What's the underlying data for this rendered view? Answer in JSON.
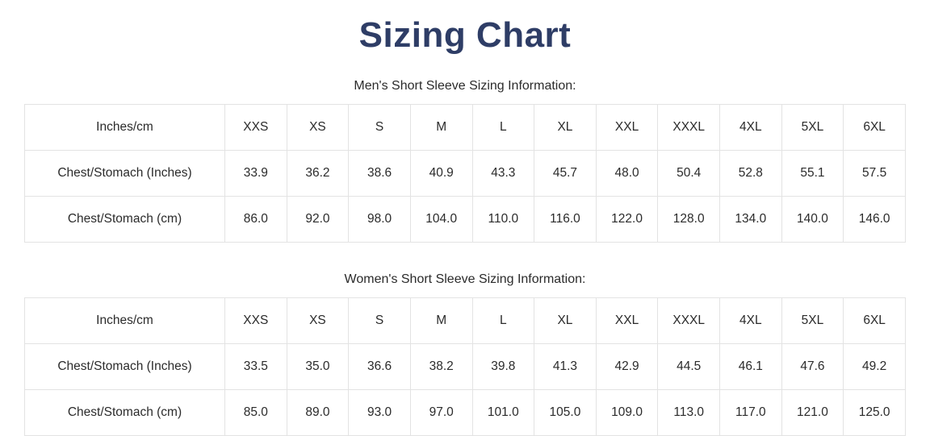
{
  "page": {
    "title": "Sizing Chart"
  },
  "colors": {
    "title_navy": "#2e3d66",
    "body_text": "#2b2b2b",
    "table_border": "#e3e3e3",
    "background": "#ffffff"
  },
  "tables": [
    {
      "caption": "Men's Short Sleeve Sizing Information:",
      "header": [
        "Inches/cm",
        "XXS",
        "XS",
        "S",
        "M",
        "L",
        "XL",
        "XXL",
        "XXXL",
        "4XL",
        "5XL",
        "6XL"
      ],
      "rows": [
        {
          "label": "Chest/Stomach (Inches)",
          "values": [
            "33.9",
            "36.2",
            "38.6",
            "40.9",
            "43.3",
            "45.7",
            "48.0",
            "50.4",
            "52.8",
            "55.1",
            "57.5"
          ]
        },
        {
          "label": "Chest/Stomach (cm)",
          "values": [
            "86.0",
            "92.0",
            "98.0",
            "104.0",
            "110.0",
            "116.0",
            "122.0",
            "128.0",
            "134.0",
            "140.0",
            "146.0"
          ]
        }
      ]
    },
    {
      "caption": "Women's Short Sleeve Sizing Information:",
      "header": [
        "Inches/cm",
        "XXS",
        "XS",
        "S",
        "M",
        "L",
        "XL",
        "XXL",
        "XXXL",
        "4XL",
        "5XL",
        "6XL"
      ],
      "rows": [
        {
          "label": "Chest/Stomach (Inches)",
          "values": [
            "33.5",
            "35.0",
            "36.6",
            "38.2",
            "39.8",
            "41.3",
            "42.9",
            "44.5",
            "46.1",
            "47.6",
            "49.2"
          ]
        },
        {
          "label": "Chest/Stomach (cm)",
          "values": [
            "85.0",
            "89.0",
            "93.0",
            "97.0",
            "101.0",
            "105.0",
            "109.0",
            "113.0",
            "117.0",
            "121.0",
            "125.0"
          ]
        }
      ]
    }
  ]
}
